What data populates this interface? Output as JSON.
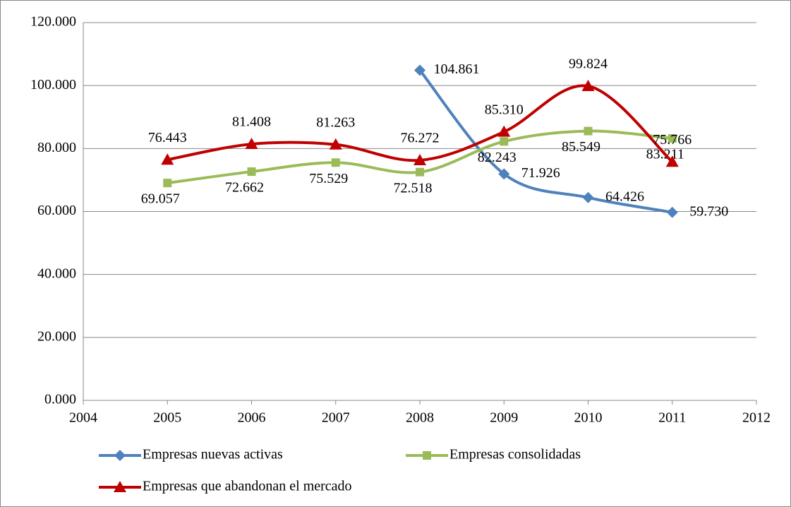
{
  "chart_data": {
    "type": "line",
    "x": [
      2005,
      2006,
      2007,
      2008,
      2009,
      2010,
      2011
    ],
    "series": [
      {
        "name": "Empresas nuevas activas",
        "color": "#4f81bd",
        "marker": "diamond",
        "values": [
          null,
          null,
          null,
          104861,
          71926,
          64426,
          59730
        ],
        "value_labels": [
          null,
          null,
          null,
          "104.861",
          "71.926",
          "64.426",
          "59.730"
        ]
      },
      {
        "name": "Empresas consolidadas",
        "color": "#9bbb59",
        "marker": "square",
        "values": [
          69057,
          72662,
          75529,
          72518,
          82243,
          85549,
          83211
        ],
        "value_labels": [
          "69.057",
          "72.662",
          "75.529",
          "72.518",
          "82.243",
          "85.549",
          "83.211"
        ]
      },
      {
        "name": "Empresas que abandonan el mercado",
        "color": "#c00000",
        "marker": "triangle",
        "values": [
          76443,
          81408,
          81263,
          76272,
          85310,
          99824,
          75766
        ],
        "value_labels": [
          "76.443",
          "81.408",
          "81.263",
          "76.272",
          "85.310",
          "99.824",
          "75.766"
        ]
      }
    ],
    "xlim": [
      2004,
      2012
    ],
    "xticks": [
      2004,
      2005,
      2006,
      2007,
      2008,
      2009,
      2010,
      2011,
      2012
    ],
    "ylim": [
      0,
      120000
    ],
    "yticks": [
      {
        "value": 0,
        "label": "0.000"
      },
      {
        "value": 20000,
        "label": "20.000"
      },
      {
        "value": 40000,
        "label": "40.000"
      },
      {
        "value": 60000,
        "label": "60.000"
      },
      {
        "value": 80000,
        "label": "80.000"
      },
      {
        "value": 100000,
        "label": "100.000"
      },
      {
        "value": 120000,
        "label": "120.000"
      }
    ],
    "grid": true,
    "smooth": true,
    "legend": "bottom"
  }
}
